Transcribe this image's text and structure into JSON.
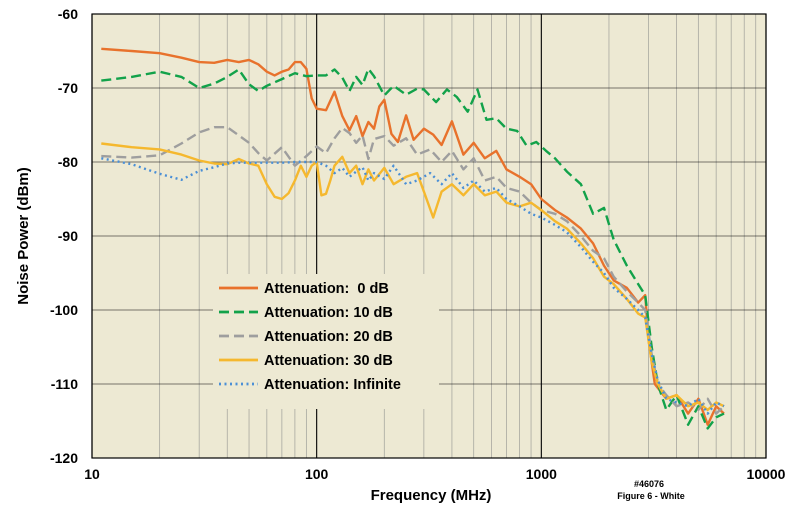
{
  "chart_data": {
    "type": "line",
    "xscale": "log",
    "xlim": [
      10,
      10000
    ],
    "ylim": [
      -120,
      -60
    ],
    "xlabel": "Frequency (MHz)",
    "ylabel": "Noise Power (dBm)",
    "x_ticks": [
      10,
      100,
      1000,
      10000
    ],
    "x_tick_labels": [
      "10",
      "100",
      "1000",
      "10000"
    ],
    "y_ticks": [
      -60,
      -70,
      -80,
      -90,
      -100,
      -110,
      -120
    ],
    "y_tick_labels": [
      "-60",
      "-70",
      "-80",
      "-90",
      "-100",
      "-110",
      "-120"
    ],
    "grid": true,
    "legend_position": "lower-left",
    "annotation": {
      "line1": "#46076",
      "line2": "Figure 6 - White"
    },
    "series": [
      {
        "name": "Attenuation:  0 dB",
        "color": "#E8722C",
        "dash": "solid",
        "points": [
          [
            11,
            -64.7
          ],
          [
            15,
            -65
          ],
          [
            20,
            -65.3
          ],
          [
            25,
            -65.9
          ],
          [
            30,
            -66.5
          ],
          [
            35,
            -66.6
          ],
          [
            40,
            -66.2
          ],
          [
            45,
            -66.5
          ],
          [
            50,
            -66.2
          ],
          [
            55,
            -66.8
          ],
          [
            60,
            -67.8
          ],
          [
            65,
            -68.3
          ],
          [
            70,
            -67.8
          ],
          [
            75,
            -67.5
          ],
          [
            80,
            -66.5
          ],
          [
            85,
            -66.5
          ],
          [
            90,
            -67.4
          ],
          [
            95,
            -71.4
          ],
          [
            100,
            -72.8
          ],
          [
            110,
            -73
          ],
          [
            120,
            -70.5
          ],
          [
            130,
            -73.8
          ],
          [
            140,
            -75.7
          ],
          [
            150,
            -73.8
          ],
          [
            160,
            -76.5
          ],
          [
            170,
            -74.6
          ],
          [
            180,
            -75.5
          ],
          [
            190,
            -72.5
          ],
          [
            200,
            -71.6
          ],
          [
            215,
            -76.2
          ],
          [
            230,
            -77.3
          ],
          [
            250,
            -73.7
          ],
          [
            270,
            -77
          ],
          [
            300,
            -75.5
          ],
          [
            330,
            -76.3
          ],
          [
            360,
            -77.7
          ],
          [
            400,
            -74.5
          ],
          [
            450,
            -79
          ],
          [
            500,
            -77.4
          ],
          [
            560,
            -79.5
          ],
          [
            630,
            -78.5
          ],
          [
            700,
            -81
          ],
          [
            800,
            -82
          ],
          [
            900,
            -83
          ],
          [
            1000,
            -85
          ],
          [
            1150,
            -86.5
          ],
          [
            1300,
            -87.5
          ],
          [
            1500,
            -89
          ],
          [
            1700,
            -91
          ],
          [
            1900,
            -94
          ],
          [
            2100,
            -96
          ],
          [
            2400,
            -97
          ],
          [
            2700,
            -99
          ],
          [
            2900,
            -98
          ],
          [
            3000,
            -104
          ],
          [
            3200,
            -110
          ],
          [
            3600,
            -112
          ],
          [
            4000,
            -111.5
          ],
          [
            4500,
            -114
          ],
          [
            5000,
            -112
          ],
          [
            5500,
            -115.5
          ],
          [
            6000,
            -113
          ],
          [
            6500,
            -114
          ]
        ]
      },
      {
        "name": "Attenuation: 10 dB",
        "color": "#12A24A",
        "dash": "dashed",
        "points": [
          [
            11,
            -69
          ],
          [
            15,
            -68.5
          ],
          [
            20,
            -67.8
          ],
          [
            25,
            -68.5
          ],
          [
            30,
            -70
          ],
          [
            35,
            -69.4
          ],
          [
            40,
            -68.5
          ],
          [
            45,
            -67.5
          ],
          [
            50,
            -69.5
          ],
          [
            55,
            -70.4
          ],
          [
            60,
            -69.7
          ],
          [
            70,
            -68.8
          ],
          [
            80,
            -68
          ],
          [
            90,
            -68.4
          ],
          [
            100,
            -68.3
          ],
          [
            110,
            -68.3
          ],
          [
            120,
            -67.5
          ],
          [
            130,
            -68.6
          ],
          [
            140,
            -70.4
          ],
          [
            150,
            -68.5
          ],
          [
            160,
            -69.6
          ],
          [
            170,
            -67.4
          ],
          [
            180,
            -68.4
          ],
          [
            200,
            -71
          ],
          [
            220,
            -69.7
          ],
          [
            250,
            -70.9
          ],
          [
            280,
            -70.1
          ],
          [
            300,
            -70.2
          ],
          [
            340,
            -71.9
          ],
          [
            380,
            -70.2
          ],
          [
            420,
            -71.2
          ],
          [
            470,
            -73.2
          ],
          [
            520,
            -70.2
          ],
          [
            570,
            -74.3
          ],
          [
            630,
            -74.1
          ],
          [
            700,
            -75.5
          ],
          [
            780,
            -75.8
          ],
          [
            860,
            -77.8
          ],
          [
            950,
            -77.3
          ],
          [
            1050,
            -78.5
          ],
          [
            1150,
            -79.5
          ],
          [
            1300,
            -81.3
          ],
          [
            1500,
            -83
          ],
          [
            1700,
            -87
          ],
          [
            1900,
            -86.2
          ],
          [
            2100,
            -90.5
          ],
          [
            2400,
            -94
          ],
          [
            2700,
            -96.5
          ],
          [
            2900,
            -98
          ],
          [
            3100,
            -105
          ],
          [
            3300,
            -110
          ],
          [
            3600,
            -113.5
          ],
          [
            4000,
            -111.5
          ],
          [
            4500,
            -115.5
          ],
          [
            5000,
            -113
          ],
          [
            5500,
            -116
          ],
          [
            6000,
            -114.5
          ],
          [
            6500,
            -114
          ]
        ]
      },
      {
        "name": "Attenuation: 20 dB",
        "color": "#9E9E9E",
        "dash": "dashed",
        "points": [
          [
            11,
            -79.2
          ],
          [
            15,
            -79.4
          ],
          [
            20,
            -79.1
          ],
          [
            25,
            -77.5
          ],
          [
            30,
            -76
          ],
          [
            35,
            -75.3
          ],
          [
            40,
            -75.3
          ],
          [
            45,
            -76.4
          ],
          [
            50,
            -77.4
          ],
          [
            55,
            -78.8
          ],
          [
            60,
            -79.8
          ],
          [
            70,
            -78
          ],
          [
            80,
            -80.5
          ],
          [
            90,
            -79.2
          ],
          [
            100,
            -77.9
          ],
          [
            110,
            -78.8
          ],
          [
            120,
            -76.8
          ],
          [
            130,
            -75.4
          ],
          [
            140,
            -76.1
          ],
          [
            150,
            -77.4
          ],
          [
            160,
            -76.4
          ],
          [
            170,
            -79.6
          ],
          [
            180,
            -76.9
          ],
          [
            200,
            -76.5
          ],
          [
            220,
            -77.8
          ],
          [
            250,
            -76.8
          ],
          [
            280,
            -79
          ],
          [
            320,
            -78.3
          ],
          [
            360,
            -80
          ],
          [
            400,
            -78.5
          ],
          [
            450,
            -81
          ],
          [
            500,
            -79.5
          ],
          [
            560,
            -82.5
          ],
          [
            630,
            -82
          ],
          [
            700,
            -83.5
          ],
          [
            800,
            -84
          ],
          [
            900,
            -85.5
          ],
          [
            1000,
            -86.5
          ],
          [
            1150,
            -87
          ],
          [
            1300,
            -88
          ],
          [
            1500,
            -90
          ],
          [
            1700,
            -92
          ],
          [
            1900,
            -93
          ],
          [
            2100,
            -95.5
          ],
          [
            2400,
            -97.5
          ],
          [
            2700,
            -99
          ],
          [
            2900,
            -100
          ],
          [
            3100,
            -106
          ],
          [
            3300,
            -110
          ],
          [
            3600,
            -111.5
          ],
          [
            4000,
            -113
          ],
          [
            4500,
            -112.5
          ],
          [
            5000,
            -113.5
          ],
          [
            5500,
            -112
          ],
          [
            6000,
            -114
          ],
          [
            6500,
            -113
          ]
        ]
      },
      {
        "name": "Attenuation: 30 dB",
        "color": "#F5B82E",
        "dash": "solid",
        "points": [
          [
            11,
            -77.5
          ],
          [
            15,
            -78
          ],
          [
            20,
            -78.3
          ],
          [
            25,
            -79
          ],
          [
            30,
            -79.8
          ],
          [
            35,
            -80.2
          ],
          [
            40,
            -80.3
          ],
          [
            45,
            -79.6
          ],
          [
            50,
            -80.2
          ],
          [
            55,
            -80.5
          ],
          [
            60,
            -83
          ],
          [
            65,
            -84.7
          ],
          [
            70,
            -85
          ],
          [
            75,
            -84.2
          ],
          [
            80,
            -82.5
          ],
          [
            85,
            -80.5
          ],
          [
            90,
            -82
          ],
          [
            95,
            -80.5
          ],
          [
            100,
            -80
          ],
          [
            105,
            -84.5
          ],
          [
            110,
            -84.3
          ],
          [
            115,
            -82.5
          ],
          [
            120,
            -80.5
          ],
          [
            130,
            -79.3
          ],
          [
            140,
            -81.5
          ],
          [
            150,
            -80.5
          ],
          [
            160,
            -83
          ],
          [
            170,
            -81
          ],
          [
            180,
            -82.5
          ],
          [
            200,
            -80.8
          ],
          [
            220,
            -83
          ],
          [
            250,
            -82
          ],
          [
            280,
            -81.5
          ],
          [
            300,
            -84
          ],
          [
            330,
            -87.5
          ],
          [
            360,
            -84
          ],
          [
            400,
            -83
          ],
          [
            450,
            -84.5
          ],
          [
            500,
            -83
          ],
          [
            560,
            -84.5
          ],
          [
            630,
            -84
          ],
          [
            700,
            -85.5
          ],
          [
            800,
            -86
          ],
          [
            900,
            -85.5
          ],
          [
            1000,
            -86.5
          ],
          [
            1150,
            -88
          ],
          [
            1300,
            -89
          ],
          [
            1500,
            -91
          ],
          [
            1700,
            -93
          ],
          [
            1900,
            -95.5
          ],
          [
            2100,
            -96.5
          ],
          [
            2400,
            -98.5
          ],
          [
            2700,
            -100.5
          ],
          [
            2900,
            -101
          ],
          [
            3100,
            -107
          ],
          [
            3300,
            -110
          ],
          [
            3600,
            -112
          ],
          [
            4000,
            -111.5
          ],
          [
            4500,
            -113
          ],
          [
            5000,
            -112.5
          ],
          [
            5500,
            -113.5
          ],
          [
            6000,
            -112.5
          ],
          [
            6500,
            -113
          ]
        ]
      },
      {
        "name": "Attenuation: Infinite",
        "color": "#4A8FD6",
        "dash": "dotted",
        "points": [
          [
            11,
            -79.5
          ],
          [
            15,
            -80.3
          ],
          [
            20,
            -81.6
          ],
          [
            25,
            -82.4
          ],
          [
            30,
            -81.2
          ],
          [
            35,
            -80.7
          ],
          [
            40,
            -80.2
          ],
          [
            45,
            -80.1
          ],
          [
            50,
            -80.1
          ],
          [
            60,
            -80.1
          ],
          [
            70,
            -80.1
          ],
          [
            80,
            -80
          ],
          [
            90,
            -80
          ],
          [
            100,
            -80
          ],
          [
            110,
            -80.5
          ],
          [
            120,
            -81.5
          ],
          [
            130,
            -80.8
          ],
          [
            140,
            -82
          ],
          [
            150,
            -81.3
          ],
          [
            160,
            -80.7
          ],
          [
            170,
            -82.5
          ],
          [
            180,
            -81.5
          ],
          [
            200,
            -82.3
          ],
          [
            220,
            -80.5
          ],
          [
            250,
            -83
          ],
          [
            280,
            -82.5
          ],
          [
            320,
            -81.5
          ],
          [
            360,
            -83
          ],
          [
            400,
            -81.5
          ],
          [
            450,
            -83.5
          ],
          [
            500,
            -82.5
          ],
          [
            560,
            -84
          ],
          [
            630,
            -83.5
          ],
          [
            700,
            -85
          ],
          [
            800,
            -86
          ],
          [
            900,
            -87
          ],
          [
            1000,
            -87.5
          ],
          [
            1150,
            -88.5
          ],
          [
            1300,
            -89.5
          ],
          [
            1500,
            -91.5
          ],
          [
            1700,
            -93.5
          ],
          [
            1900,
            -95
          ],
          [
            2100,
            -97
          ],
          [
            2400,
            -98.5
          ],
          [
            2700,
            -100
          ],
          [
            2900,
            -101
          ],
          [
            3100,
            -106
          ],
          [
            3300,
            -109.5
          ],
          [
            3600,
            -112
          ],
          [
            4000,
            -112.5
          ],
          [
            4500,
            -113
          ],
          [
            5000,
            -112
          ],
          [
            5500,
            -114
          ],
          [
            6000,
            -112.5
          ],
          [
            6500,
            -113
          ]
        ]
      }
    ]
  }
}
